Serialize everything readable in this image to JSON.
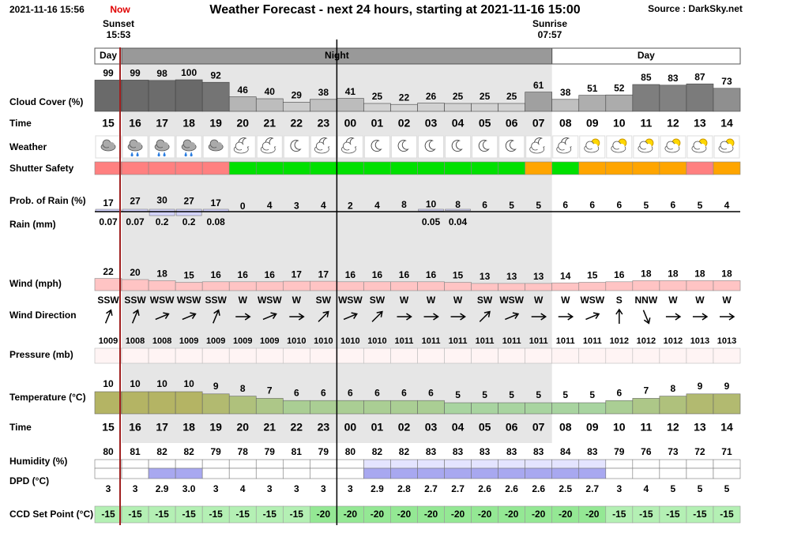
{
  "header": {
    "timestamp": "2021-11-16 15:56",
    "now": "Now",
    "title": "Weather Forecast - next 24 hours, starting at 2021-11-16 15:00",
    "source": "Source : DarkSky.net",
    "sunset": "Sunset",
    "sunset_time": "15:53",
    "sunrise": "Sunrise",
    "sunrise_time": "07:57"
  },
  "bands": [
    {
      "label": "Day",
      "hours": 1,
      "color": "#ffffff",
      "shade": null
    },
    {
      "label": "Night",
      "hours": 16,
      "color": "#999999",
      "shade": "#e6e6e6"
    },
    {
      "label": "Day",
      "hours": 7,
      "color": "#ffffff",
      "shade": null
    }
  ],
  "row_labels": [
    "Cloud Cover (%)",
    "Time",
    "Weather",
    "Shutter Safety",
    "Prob. of Rain (%)",
    "Rain (mm)",
    "Wind (mph)",
    "Wind Direction",
    "Pressure (mb)",
    "Temperature (°C)",
    "Time",
    "Humidity (%)",
    "DPD (°C)",
    "CCD Set Point (°C)"
  ],
  "hours": [
    "15",
    "16",
    "17",
    "18",
    "19",
    "20",
    "21",
    "22",
    "23",
    "00",
    "01",
    "02",
    "03",
    "04",
    "05",
    "06",
    "07",
    "08",
    "09",
    "10",
    "11",
    "12",
    "13",
    "14"
  ],
  "cloud_cover": [
    99,
    99,
    98,
    100,
    92,
    46,
    40,
    29,
    38,
    41,
    25,
    22,
    26,
    25,
    25,
    25,
    61,
    38,
    51,
    52,
    85,
    83,
    87,
    73
  ],
  "shutter_safety": [
    "#ff8080",
    "#ff8080",
    "#ff8080",
    "#ff8080",
    "#ff8080",
    "#00e000",
    "#00e000",
    "#00e000",
    "#00e000",
    "#00e000",
    "#00e000",
    "#00e000",
    "#00e000",
    "#00e000",
    "#00e000",
    "#00e000",
    "#ffa500",
    "#00e000",
    "#ffa500",
    "#ffa500",
    "#ffa500",
    "#ffa500",
    "#ff8080",
    "#ffa500"
  ],
  "rain_probability": [
    17,
    27,
    30,
    27,
    17,
    0,
    4,
    3,
    4,
    2,
    4,
    8,
    10,
    8,
    6,
    5,
    5,
    6,
    6,
    6,
    5,
    6,
    5,
    4
  ],
  "rain_mm": [
    0.07,
    0.07,
    0.2,
    0.2,
    0.08,
    null,
    null,
    null,
    null,
    null,
    null,
    null,
    0.05,
    0.04,
    null,
    null,
    null,
    null,
    null,
    null,
    null,
    null,
    null,
    null
  ],
  "wind_mph": [
    22,
    20,
    18,
    15,
    16,
    16,
    16,
    17,
    17,
    16,
    16,
    16,
    16,
    15,
    13,
    13,
    13,
    14,
    15,
    16,
    18,
    18,
    18,
    18
  ],
  "wind_direction": [
    "SSW",
    "SSW",
    "WSW",
    "WSW",
    "SSW",
    "W",
    "WSW",
    "W",
    "SW",
    "WSW",
    "SW",
    "W",
    "W",
    "W",
    "SW",
    "WSW",
    "W",
    "W",
    "WSW",
    "S",
    "NNW",
    "W",
    "W",
    "W"
  ],
  "wind_bearing_deg": [
    202.5,
    202.5,
    247.5,
    247.5,
    202.5,
    270,
    247.5,
    270,
    225,
    247.5,
    225,
    270,
    270,
    270,
    225,
    247.5,
    270,
    270,
    247.5,
    180,
    337.5,
    270,
    270,
    270
  ],
  "pressure_mb": [
    1009,
    1008,
    1008,
    1009,
    1009,
    1009,
    1009,
    1010,
    1010,
    1010,
    1010,
    1011,
    1011,
    1011,
    1011,
    1011,
    1011,
    1011,
    1011,
    1012,
    1012,
    1012,
    1013,
    1013
  ],
  "temperature_c": [
    10,
    10,
    10,
    10,
    9,
    8,
    7,
    6,
    6,
    6,
    6,
    6,
    6,
    5,
    5,
    5,
    5,
    5,
    5,
    6,
    7,
    8,
    9,
    9
  ],
  "humidity_pct": [
    80,
    81,
    82,
    82,
    79,
    78,
    79,
    81,
    79,
    80,
    82,
    82,
    83,
    83,
    83,
    83,
    83,
    84,
    83,
    79,
    76,
    73,
    72,
    71
  ],
  "humidity_colors": [
    "#ffffff",
    "#ffffff",
    "#ffffff",
    "#ffffff",
    "#ffffff",
    "#ffffff",
    "#ffffff",
    "#ffffff",
    "#ffffff",
    "#ffffff",
    "#e4e4ff",
    "#e4e4ff",
    "#e4e4ff",
    "#e4e4ff",
    "#e4e4ff",
    "#e4e4ff",
    "#e4e4ff",
    "#e4e4ff",
    "#e4e4ff",
    "#ffffff",
    "#ffffff",
    "#ffffff",
    "#ffffff",
    "#ffffff"
  ],
  "dpd_c": [
    3,
    3,
    2.9,
    3.0,
    3,
    4,
    3,
    3,
    3,
    3,
    2.9,
    2.8,
    2.7,
    2.7,
    2.6,
    2.6,
    2.6,
    2.5,
    2.7,
    3,
    4,
    5,
    5,
    5
  ],
  "dpd_value_labels": [
    "3",
    "3",
    "2.9",
    "3.0",
    "3",
    "4",
    "3",
    "3",
    "3",
    "3",
    "2.9",
    "2.8",
    "2.7",
    "2.7",
    "2.6",
    "2.6",
    "2.6",
    "2.5",
    "2.7",
    "3",
    "4",
    "5",
    "5",
    "5"
  ],
  "dpd_colors": [
    "#ffffff",
    "#ffffff",
    "#a8a8f0",
    "#a8a8f0",
    "#ffffff",
    "#ffffff",
    "#ffffff",
    "#ffffff",
    "#ffffff",
    "#ffffff",
    "#a8a8f0",
    "#a8a8f0",
    "#a8a8f0",
    "#a8a8f0",
    "#a8a8f0",
    "#a8a8f0",
    "#a8a8f0",
    "#a8a8f0",
    "#a8a8f0",
    "#ffffff",
    "#ffffff",
    "#ffffff",
    "#ffffff",
    "#ffffff"
  ],
  "ccd_set_point": [
    -15,
    -15,
    -15,
    -15,
    -15,
    -15,
    -15,
    -15,
    -20,
    -20,
    -20,
    -20,
    -20,
    -20,
    -20,
    -20,
    -20,
    -20,
    -20,
    -15,
    -15,
    -15,
    -15,
    -15
  ],
  "ccd_colors": [
    "#b4f0b4",
    "#b4f0b4",
    "#b4f0b4",
    "#b4f0b4",
    "#b4f0b4",
    "#b4f0b4",
    "#b4f0b4",
    "#b4f0b4",
    "#94e894",
    "#94e894",
    "#94e894",
    "#94e894",
    "#94e894",
    "#94e894",
    "#94e894",
    "#94e894",
    "#94e894",
    "#94e894",
    "#94e894",
    "#b4f0b4",
    "#b4f0b4",
    "#b4f0b4",
    "#b4f0b4",
    "#b4f0b4"
  ]
}
